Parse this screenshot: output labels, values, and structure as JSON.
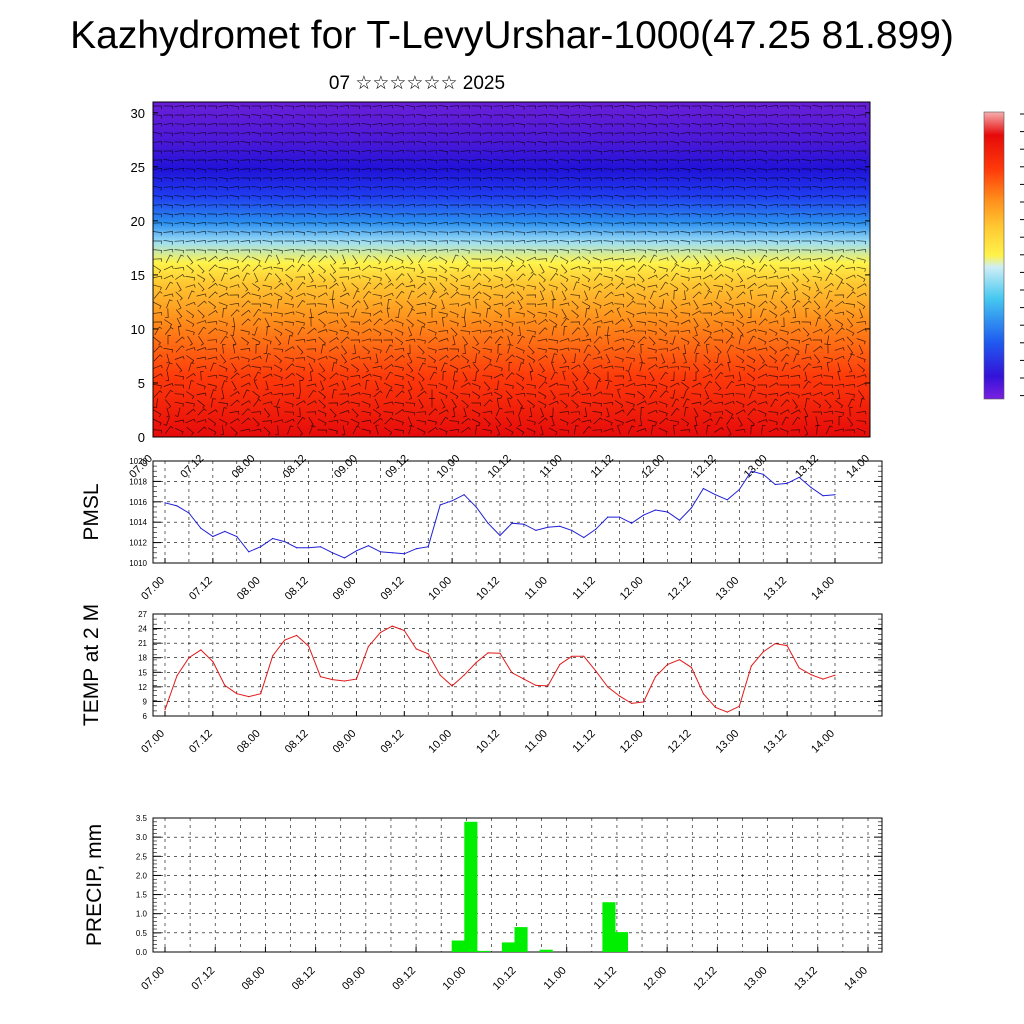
{
  "page": {
    "title": "Kazhydromet for T-LevyUrshar-1000(47.25 81.899)",
    "subtitle": "07 ☆☆☆☆☆☆ 2025"
  },
  "time_labels": [
    "07.00",
    "07.12",
    "08.00",
    "08.12",
    "09.00",
    "09.12",
    "10.00",
    "10.12",
    "11.00",
    "11.12",
    "12.00",
    "12.12",
    "13.00",
    "13.12",
    "14.00"
  ],
  "colors": {
    "pmsl_line": "#1f1fd6",
    "temp_line": "#e01a1a",
    "precip_bar": "#00ee00",
    "grid": "#000000"
  },
  "chart_data": [
    {
      "type": "heatmap",
      "description_kind": "cross-section with wind barbs",
      "y_ticks": [
        0,
        5,
        10,
        15,
        20,
        25,
        30
      ],
      "ylim": [
        0,
        31
      ],
      "colormap": [
        "#6a1fd8",
        "#3412d8",
        "#1f3cf0",
        "#2a8ff0",
        "#46c8f0",
        "#bfe9f5",
        "#fff34a",
        "#ffc832",
        "#ff9a1e",
        "#ff6a14",
        "#ff3a0a",
        "#e60a0a",
        "#f2a0a0"
      ],
      "colorbar_labels": []
    },
    {
      "type": "line",
      "name": "PMSL",
      "ylabel": "PMSL",
      "ylim": [
        1010,
        1020
      ],
      "y_ticks": [
        1010,
        1012,
        1014,
        1016,
        1018,
        1020
      ],
      "x_count": 57,
      "values": [
        1015.9,
        1015.6,
        1014.9,
        1013.4,
        1012.6,
        1013.1,
        1012.6,
        1011.1,
        1011.6,
        1012.4,
        1012.1,
        1011.5,
        1011.5,
        1011.6,
        1011.0,
        1010.5,
        1011.2,
        1011.7,
        1011.1,
        1011.0,
        1010.9,
        1011.4,
        1011.6,
        1015.7,
        1016.1,
        1016.7,
        1015.5,
        1013.9,
        1012.7,
        1013.9,
        1013.8,
        1013.2,
        1013.5,
        1013.6,
        1013.2,
        1012.5,
        1013.3,
        1014.5,
        1014.5,
        1013.9,
        1014.7,
        1015.2,
        1015.0,
        1014.2,
        1015.4,
        1017.3,
        1016.7,
        1016.2,
        1017.2,
        1019.0,
        1018.7,
        1017.7,
        1017.8,
        1018.4,
        1017.4,
        1016.6,
        1016.7
      ]
    },
    {
      "type": "line",
      "name": "TEMP at 2 M",
      "ylabel": "TEMP at 2 M",
      "ylim": [
        6,
        27
      ],
      "y_ticks": [
        6,
        9,
        12,
        15,
        18,
        21,
        24,
        27
      ],
      "x_count": 57,
      "values": [
        7.3,
        14.3,
        18.0,
        19.6,
        17.2,
        12.3,
        10.6,
        10.0,
        10.6,
        18.4,
        21.6,
        22.6,
        20.4,
        14.1,
        13.5,
        13.2,
        13.6,
        20.3,
        23.2,
        24.5,
        23.6,
        19.8,
        18.8,
        14.4,
        12.2,
        14.4,
        17.0,
        19.0,
        18.9,
        14.9,
        13.6,
        12.3,
        12.2,
        16.6,
        18.3,
        18.3,
        15.3,
        12.0,
        10.1,
        8.6,
        8.9,
        14.1,
        16.6,
        17.6,
        16.0,
        10.6,
        7.8,
        6.8,
        8.0,
        16.3,
        19.2,
        20.9,
        20.5,
        15.9,
        14.5,
        13.6,
        14.4
      ]
    },
    {
      "type": "bar",
      "name": "PRECIP, mm",
      "ylabel": "PRECIP, mm",
      "ylim": [
        0,
        3.5
      ],
      "y_ticks": [
        "0.0",
        "0.5",
        "1.0",
        "1.5",
        "2.0",
        "2.5",
        "3.0",
        "3.5"
      ],
      "bars": [
        {
          "slot": 23,
          "value": 0.3
        },
        {
          "slot": 24,
          "value": 3.4
        },
        {
          "slot": 25,
          "value": 0.03
        },
        {
          "slot": 27,
          "value": 0.25
        },
        {
          "slot": 28,
          "value": 0.65
        },
        {
          "slot": 30,
          "value": 0.06
        },
        {
          "slot": 35,
          "value": 1.3
        },
        {
          "slot": 36,
          "value": 0.52
        }
      ]
    }
  ]
}
